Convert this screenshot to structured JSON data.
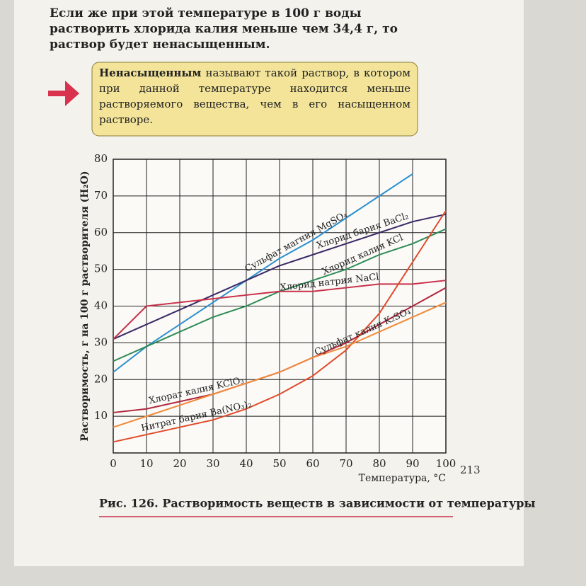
{
  "page": {
    "paragraph": "Если же при этой температуре в 100 г воды растворить хлорида калия меньше чем 34,4 г, то раствор будет ненасыщенным.",
    "definition_term": "Ненасыщенным",
    "definition_text": "называют такой раствор, в котором при данной температуре находится меньше растворяемого вещества, чем в его насыщенном растворе.",
    "caption": "Рис. 126. Растворимость веществ в зависимости от температуры",
    "page_number": "213"
  },
  "chart_data": {
    "type": "line",
    "x_label": "Температура, °С",
    "y_label": "Растворимость, г на 100 г растворителя (H₂O)",
    "x": [
      0,
      10,
      20,
      30,
      40,
      50,
      60,
      70,
      80,
      90,
      100
    ],
    "xlim": [
      0,
      100
    ],
    "xticks": [
      0,
      10,
      20,
      30,
      40,
      50,
      60,
      70,
      80,
      90,
      100
    ],
    "ylim": [
      0,
      80
    ],
    "yticks": [
      10,
      20,
      30,
      40,
      50,
      60,
      70,
      80
    ],
    "grid": true,
    "series": [
      {
        "name": "Сульфат магния MgSO₄",
        "color": "#2b8fd0",
        "values": [
          22,
          29,
          35,
          41,
          47,
          53,
          58,
          64,
          70,
          76,
          null
        ]
      },
      {
        "name": "Хлорид бария BaCl₂",
        "color": "#3a2a66",
        "values": [
          31,
          35,
          39,
          43,
          47,
          51,
          54,
          57,
          60,
          63,
          65
        ]
      },
      {
        "name": "Хлорид калия KCl",
        "color": "#2e8b57",
        "values": [
          25,
          29,
          33,
          37,
          40,
          44,
          47,
          50,
          54,
          57,
          61
        ]
      },
      {
        "name": "Хлорид натрия NaCl",
        "color": "#c8304a",
        "values": [
          31,
          40,
          41,
          42,
          43,
          44,
          44,
          45,
          46,
          46,
          47
        ]
      },
      {
        "name": "Хлорат калия KClO₃",
        "color": "#b02840",
        "values": [
          11,
          12,
          14,
          16,
          19,
          22,
          26,
          30,
          35,
          40,
          45
        ]
      },
      {
        "name": "Нитрат бария Ba(NO₃)₂",
        "color": "#e04a2a",
        "values": [
          3,
          5,
          7,
          9,
          12,
          16,
          21,
          28,
          38,
          52,
          66
        ]
      },
      {
        "name": "Сульфат калия K₂SO₄",
        "color": "#f08a3a",
        "values": [
          7,
          10,
          13,
          16,
          19,
          22,
          26,
          29,
          33,
          37,
          41
        ]
      }
    ]
  }
}
